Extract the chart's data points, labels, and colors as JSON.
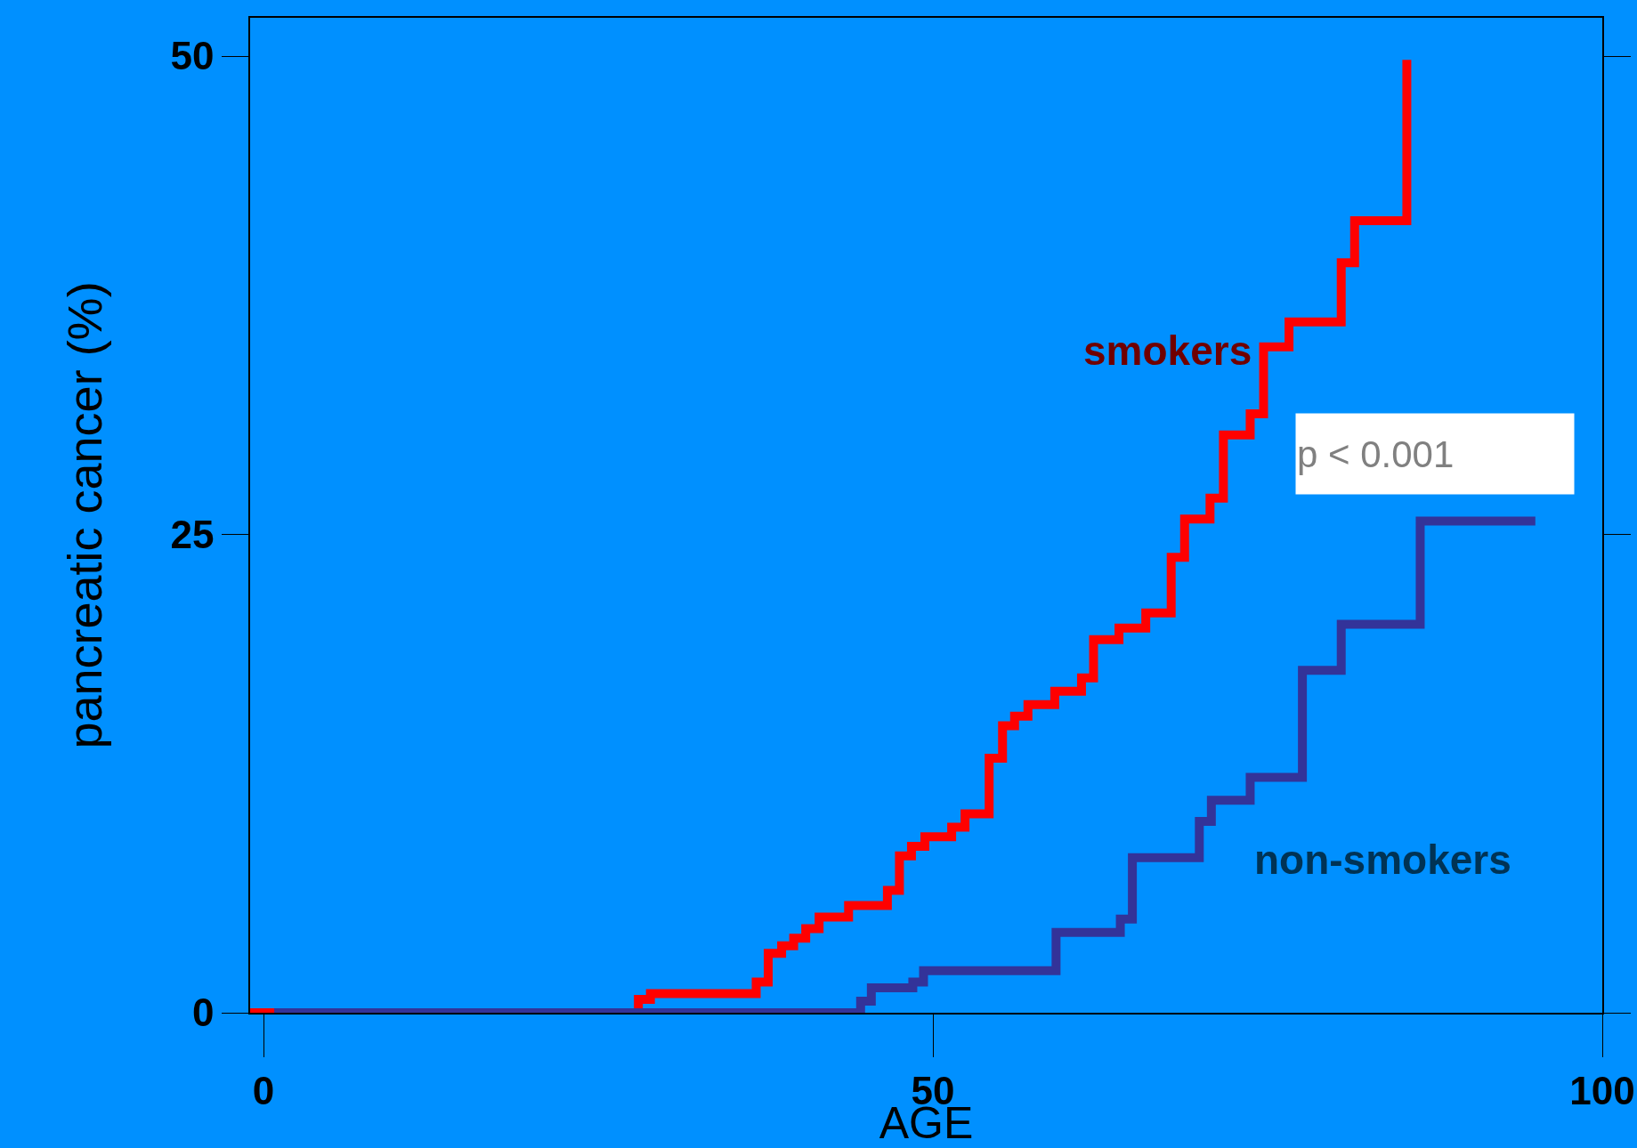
{
  "chart_data": {
    "type": "step",
    "xlabel": "AGE",
    "ylabel": "pancreatic cancer (%)",
    "xlim": [
      -1,
      100
    ],
    "ylim": [
      0,
      52
    ],
    "xticks": [
      0,
      50,
      100
    ],
    "yticks": [
      0,
      25,
      50
    ],
    "grid": false,
    "legend": false,
    "marker": "none",
    "line_style": "solid",
    "series": [
      {
        "name": "smokers",
        "color": "#ff0000",
        "x": [
          -1,
          28.0,
          28.9,
          36.8,
          37.7,
          38.7,
          39.6,
          40.5,
          41.5,
          43.7,
          46.6,
          47.5,
          48.4,
          49.4,
          51.4,
          52.4,
          54.2,
          55.2,
          56.1,
          57.1,
          59.1,
          61.1,
          62.0,
          63.9,
          65.9,
          67.8,
          68.8,
          70.7,
          71.7,
          73.7,
          74.7,
          76.6,
          80.5,
          81.5,
          85.4
        ],
        "values": [
          0,
          0.7,
          1.0,
          1.6,
          3.1,
          3.5,
          3.9,
          4.4,
          5.0,
          5.6,
          6.4,
          8.2,
          8.7,
          9.2,
          9.7,
          10.4,
          13.3,
          15.0,
          15.5,
          16.1,
          16.8,
          17.5,
          19.5,
          20.1,
          20.9,
          23.8,
          25.8,
          26.9,
          30.2,
          31.3,
          34.8,
          36.1,
          39.2,
          41.4,
          49.8
        ]
      },
      {
        "name": "non-smokers",
        "color": "#333399",
        "x": [
          0.8,
          44.6,
          45.4,
          48.5,
          49.3,
          59.2,
          64.0,
          64.9,
          69.9,
          70.8,
          73.7,
          77.6,
          80.5,
          86.4,
          95.0
        ],
        "values": [
          0,
          0.6,
          1.3,
          1.6,
          2.2,
          4.2,
          4.9,
          8.1,
          10.0,
          11.1,
          12.3,
          17.9,
          20.3,
          25.7,
          25.7
        ]
      }
    ],
    "annotations": [
      "p < 0.001"
    ]
  }
}
